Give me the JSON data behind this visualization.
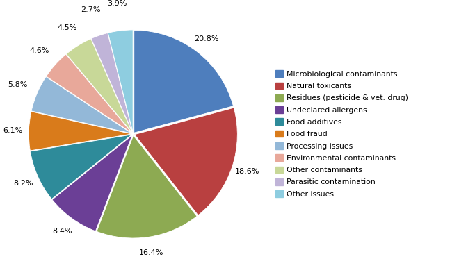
{
  "labels": [
    "Microbiological contaminants",
    "Natural toxicants",
    "Residues (pesticide & vet. drug)",
    "Undeclared allergens",
    "Food additives",
    "Food fraud",
    "Processing issues",
    "Environmental contaminants",
    "Other contaminants",
    "Parasitic contamination",
    "Other issues"
  ],
  "values": [
    20.8,
    18.6,
    16.4,
    8.4,
    8.2,
    6.1,
    5.8,
    4.6,
    4.5,
    2.7,
    3.9
  ],
  "colors": [
    "#4E7EBD",
    "#B94040",
    "#8DAA52",
    "#6B3F96",
    "#2E8B9A",
    "#D97B1B",
    "#93B8D8",
    "#E8A89A",
    "#C8D898",
    "#C0B4D8",
    "#8ECDE0"
  ],
  "pct_labels": [
    "20.8%",
    "18.6%",
    "16.4%",
    "8.4%",
    "8.2%",
    "6.1%",
    "5.8%",
    "4.6%",
    "4.5%",
    "2.7%",
    "3.9%"
  ],
  "figsize": [
    6.6,
    3.86
  ],
  "dpi": 100
}
